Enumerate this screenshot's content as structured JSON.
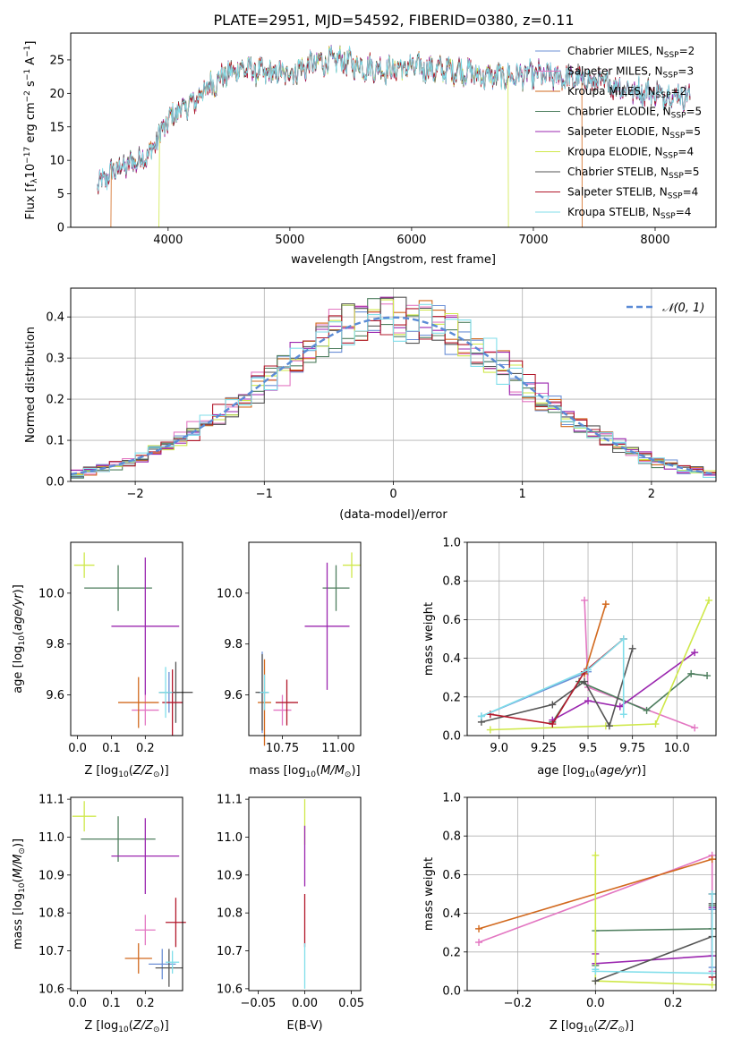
{
  "title": "PLATE=2951, MJD=54592, FIBERID=0380, z=0.11",
  "series_styles": [
    {
      "name": "Chabrier MILES, N_SSP=2",
      "color": "#6b8fd6"
    },
    {
      "name": "Salpeter MILES, N_SSP=3",
      "color": "#e377c2"
    },
    {
      "name": "Kroupa MILES, N_SSP=2",
      "color": "#d2691e"
    },
    {
      "name": "Chabrier ELODIE, N_SSP=5",
      "color": "#4f7f5f"
    },
    {
      "name": "Salpeter ELODIE, N_SSP=5",
      "color": "#9b27af"
    },
    {
      "name": "Kroupa ELODIE, N_SSP=4",
      "color": "#cfe84a"
    },
    {
      "name": "Chabrier STELIB, N_SSP=5",
      "color": "#555555"
    },
    {
      "name": "Salpeter STELIB, N_SSP=4",
      "color": "#b2182b"
    },
    {
      "name": "Kroupa STELIB, N_SSP=4",
      "color": "#80deea"
    }
  ],
  "legend_display": [
    {
      "prefix": "Chabrier MILES, N",
      "sub": "SSP",
      "suffix": "=2"
    },
    {
      "prefix": "Salpeter MILES, N",
      "sub": "SSP",
      "suffix": "=3"
    },
    {
      "prefix": "Kroupa MILES, N",
      "sub": "SSP",
      "suffix": "=2"
    },
    {
      "prefix": "Chabrier ELODIE, N",
      "sub": "SSP",
      "suffix": "=5"
    },
    {
      "prefix": "Salpeter ELODIE, N",
      "sub": "SSP",
      "suffix": "=5"
    },
    {
      "prefix": "Kroupa ELODIE, N",
      "sub": "SSP",
      "suffix": "=4"
    },
    {
      "prefix": "Chabrier STELIB, N",
      "sub": "SSP",
      "suffix": "=5"
    },
    {
      "prefix": "Salpeter STELIB, N",
      "sub": "SSP",
      "suffix": "=4"
    },
    {
      "prefix": "Kroupa STELIB, N",
      "sub": "SSP",
      "suffix": "=4"
    }
  ],
  "chart_data": [
    {
      "id": "spectrum",
      "type": "line",
      "xlabel": "wavelength [Angstrom, rest frame]",
      "ylabel": "Flux [f_λ 10^-17 erg cm^-2 s^-1 A^-1]",
      "ylabel_parts": {
        "a": "Flux [f",
        "sub": "λ",
        "b": "10",
        "sup1": "−17",
        "c": " erg cm",
        "sup2": "−2",
        "d": " s",
        "sup3": "−1",
        "e": " A",
        "sup4": "−1",
        "f": "]"
      },
      "xlim": [
        3200,
        8500
      ],
      "ylim": [
        0,
        29
      ],
      "xticks": [
        4000,
        5000,
        6000,
        7000,
        8000
      ],
      "yticks": [
        0,
        5,
        10,
        15,
        20,
        25
      ],
      "x_range": [
        3420,
        8290
      ],
      "envelope": [
        [
          3420,
          6.0
        ],
        [
          3550,
          8.5
        ],
        [
          3700,
          9.5
        ],
        [
          3850,
          11.0
        ],
        [
          3950,
          14.5
        ],
        [
          4050,
          17.0
        ],
        [
          4200,
          18.5
        ],
        [
          4300,
          20.5
        ],
        [
          4450,
          22.5
        ],
        [
          4600,
          23.8
        ],
        [
          4800,
          23.0
        ],
        [
          5000,
          23.0
        ],
        [
          5200,
          24.5
        ],
        [
          5400,
          25.0
        ],
        [
          5600,
          24.0
        ],
        [
          5800,
          23.5
        ],
        [
          6000,
          24.0
        ],
        [
          6200,
          23.5
        ],
        [
          6400,
          23.5
        ],
        [
          6600,
          22.5
        ],
        [
          6800,
          22.5
        ],
        [
          7000,
          22.8
        ],
        [
          7200,
          22.5
        ],
        [
          7400,
          22.0
        ],
        [
          7600,
          21.5
        ],
        [
          7800,
          20.5
        ],
        [
          8000,
          20.0
        ],
        [
          8290,
          19.5
        ]
      ],
      "dropouts": [
        {
          "series": "Kroupa MILES, N_SSP=2",
          "x": 3530,
          "side": "left"
        },
        {
          "series": "Kroupa ELODIE, N_SSP=4",
          "x": 3925,
          "side": "left"
        },
        {
          "series": "Kroupa ELODIE, N_SSP=4",
          "x": 6795,
          "side": "right"
        },
        {
          "series": "Kroupa MILES, N_SSP=2",
          "x": 7400,
          "side": "right"
        }
      ],
      "legend_position": "upper right"
    },
    {
      "id": "residuals",
      "type": "histogram",
      "xlabel": "(data-model)/error",
      "ylabel": "Normed distribution",
      "xlim": [
        -2.5,
        2.5
      ],
      "ylim": [
        0,
        0.47
      ],
      "xticks": [
        -2,
        -1,
        0,
        1,
        2
      ],
      "yticks": [
        0.0,
        0.1,
        0.2,
        0.3,
        0.4
      ],
      "bin_width": 0.1,
      "reference_curve": {
        "label": "N(0,1)",
        "color": "#5b8bd6"
      },
      "grid": true,
      "legend_position": "upper right"
    },
    {
      "id": "age_vs_Z",
      "type": "errorbar",
      "xlabel": "Z [log10(Z/Z⊙)]",
      "ylabel": "age [log10(age/yr)]",
      "xlim": [
        -0.02,
        0.31
      ],
      "ylim": [
        9.44,
        10.2
      ],
      "xticks": [
        0.0,
        0.1,
        0.2
      ],
      "yticks": [
        9.6,
        9.8,
        10.0
      ],
      "points": [
        {
          "series": "Chabrier MILES, N_SSP=2",
          "x": 0.27,
          "y": 9.61,
          "xerr": 0.03,
          "yerr": 0.08
        },
        {
          "series": "Salpeter MILES, N_SSP=3",
          "x": 0.2,
          "y": 9.54,
          "xerr": 0.04,
          "yerr": 0.06
        },
        {
          "series": "Kroupa MILES, N_SSP=2",
          "x": 0.18,
          "y": 9.57,
          "xerr": 0.06,
          "yerr": 0.1
        },
        {
          "series": "Chabrier ELODIE, N_SSP=5",
          "x": 0.12,
          "y": 10.02,
          "xerr": 0.1,
          "yerr": 0.09
        },
        {
          "series": "Salpeter ELODIE, N_SSP=5",
          "x": 0.2,
          "y": 9.87,
          "xerr": 0.1,
          "yerr": 0.27
        },
        {
          "series": "Kroupa ELODIE, N_SSP=4",
          "x": 0.02,
          "y": 10.11,
          "xerr": 0.03,
          "yerr": 0.05
        },
        {
          "series": "Chabrier STELIB, N_SSP=5",
          "x": 0.29,
          "y": 9.61,
          "xerr": 0.05,
          "yerr": 0.12
        },
        {
          "series": "Salpeter STELIB, N_SSP=4",
          "x": 0.28,
          "y": 9.57,
          "xerr": 0.03,
          "yerr": 0.13
        },
        {
          "series": "Kroupa STELIB, N_SSP=4",
          "x": 0.26,
          "y": 9.61,
          "xerr": 0.02,
          "yerr": 0.1
        }
      ]
    },
    {
      "id": "age_vs_mass",
      "type": "errorbar",
      "xlabel": "mass [log10(M/M⊙)]",
      "ylabel": "",
      "xlim": [
        10.6,
        11.1
      ],
      "ylim": [
        9.44,
        10.2
      ],
      "xticks": [
        10.75,
        11.0
      ],
      "yticks": [
        9.6,
        9.8,
        10.0
      ],
      "points": [
        {
          "series": "Chabrier MILES, N_SSP=2",
          "x": 10.66,
          "y": 9.61,
          "xerr": 0.02,
          "yerr": 0.16
        },
        {
          "series": "Salpeter MILES, N_SSP=3",
          "x": 10.75,
          "y": 9.54,
          "xerr": 0.04,
          "yerr": 0.06
        },
        {
          "series": "Kroupa MILES, N_SSP=2",
          "x": 10.67,
          "y": 9.57,
          "xerr": 0.03,
          "yerr": 0.17
        },
        {
          "series": "Chabrier ELODIE, N_SSP=5",
          "x": 10.99,
          "y": 10.02,
          "xerr": 0.06,
          "yerr": 0.09
        },
        {
          "series": "Salpeter ELODIE, N_SSP=5",
          "x": 10.95,
          "y": 9.87,
          "xerr": 0.1,
          "yerr": 0.25
        },
        {
          "series": "Kroupa ELODIE, N_SSP=4",
          "x": 11.06,
          "y": 10.11,
          "xerr": 0.04,
          "yerr": 0.05
        },
        {
          "series": "Chabrier STELIB, N_SSP=5",
          "x": 10.66,
          "y": 9.61,
          "xerr": 0.03,
          "yerr": 0.15
        },
        {
          "series": "Salpeter STELIB, N_SSP=4",
          "x": 10.77,
          "y": 9.57,
          "xerr": 0.05,
          "yerr": 0.09
        },
        {
          "series": "Kroupa STELIB, N_SSP=4",
          "x": 10.67,
          "y": 9.61,
          "xerr": 0.02,
          "yerr": 0.07
        }
      ]
    },
    {
      "id": "weight_vs_age",
      "type": "line",
      "xlabel": "age [log10(age/yr)]",
      "ylabel": "mass weight",
      "xlim": [
        8.82,
        10.22
      ],
      "ylim": [
        0,
        1
      ],
      "xticks": [
        9.0,
        9.25,
        9.5,
        9.75,
        10.0
      ],
      "yticks": [
        0.0,
        0.2,
        0.4,
        0.6,
        0.8,
        1.0
      ],
      "grid": true,
      "series": [
        {
          "name": "Chabrier MILES, N_SSP=2",
          "x": [
            8.9,
            9.5
          ],
          "y": [
            0.1,
            0.33
          ]
        },
        {
          "name": "Salpeter MILES, N_SSP=3",
          "x": [
            9.48,
            9.5,
            10.1
          ],
          "y": [
            0.7,
            0.25,
            0.04
          ]
        },
        {
          "name": "Kroupa MILES, N_SSP=2",
          "x": [
            9.48,
            9.6
          ],
          "y": [
            0.32,
            0.68
          ]
        },
        {
          "name": "Chabrier ELODIE, N_SSP=5",
          "x": [
            9.3,
            9.45,
            9.83,
            10.08,
            10.17
          ],
          "y": [
            0.07,
            0.28,
            0.13,
            0.32,
            0.31
          ]
        },
        {
          "name": "Salpeter ELODIE, N_SSP=5",
          "x": [
            9.3,
            9.5,
            9.68,
            10.1
          ],
          "y": [
            0.08,
            0.18,
            0.15,
            0.43
          ]
        },
        {
          "name": "Kroupa ELODIE, N_SSP=4",
          "x": [
            8.95,
            9.6,
            9.88,
            10.18
          ],
          "y": [
            0.03,
            0.05,
            0.06,
            0.7
          ]
        },
        {
          "name": "Chabrier STELIB, N_SSP=5",
          "x": [
            8.9,
            9.3,
            9.48,
            9.62,
            9.75
          ],
          "y": [
            0.07,
            0.16,
            0.28,
            0.05,
            0.45
          ]
        },
        {
          "name": "Salpeter STELIB, N_SSP=4",
          "x": [
            8.95,
            9.3,
            9.48,
            9.7
          ],
          "y": [
            0.11,
            0.06,
            0.33,
            0.5
          ]
        },
        {
          "name": "Kroupa STELIB, N_SSP=4",
          "x": [
            8.9,
            9.5,
            9.7,
            9.7
          ],
          "y": [
            0.1,
            0.34,
            0.5,
            0.11
          ]
        }
      ]
    },
    {
      "id": "mass_vs_Z",
      "type": "errorbar",
      "xlabel": "Z [log10(Z/Z⊙)]",
      "ylabel": "mass [log10(M/M⊙)]",
      "xlim": [
        -0.02,
        0.31
      ],
      "ylim": [
        10.595,
        11.105
      ],
      "xticks": [
        0.0,
        0.1,
        0.2
      ],
      "yticks": [
        10.6,
        10.7,
        10.8,
        10.9,
        11.0,
        11.1
      ],
      "points": [
        {
          "series": "Chabrier MILES, N_SSP=2",
          "x": 0.25,
          "y": 10.665,
          "xerr": 0.04,
          "yerr": 0.04
        },
        {
          "series": "Salpeter MILES, N_SSP=3",
          "x": 0.2,
          "y": 10.755,
          "xerr": 0.03,
          "yerr": 0.04
        },
        {
          "series": "Kroupa MILES, N_SSP=2",
          "x": 0.18,
          "y": 10.68,
          "xerr": 0.04,
          "yerr": 0.04
        },
        {
          "series": "Chabrier ELODIE, N_SSP=5",
          "x": 0.12,
          "y": 10.995,
          "xerr": 0.11,
          "yerr": 0.06
        },
        {
          "series": "Salpeter ELODIE, N_SSP=5",
          "x": 0.2,
          "y": 10.95,
          "xerr": 0.1,
          "yerr": 0.1
        },
        {
          "series": "Kroupa ELODIE, N_SSP=4",
          "x": 0.02,
          "y": 11.055,
          "xerr": 0.035,
          "yerr": 0.04
        },
        {
          "series": "Chabrier STELIB, N_SSP=5",
          "x": 0.27,
          "y": 10.655,
          "xerr": 0.04,
          "yerr": 0.05
        },
        {
          "series": "Salpeter STELIB, N_SSP=4",
          "x": 0.29,
          "y": 10.775,
          "xerr": 0.03,
          "yerr": 0.065
        },
        {
          "series": "Kroupa STELIB, N_SSP=4",
          "x": 0.28,
          "y": 10.67,
          "xerr": 0.02,
          "yerr": 0.03
        }
      ]
    },
    {
      "id": "mass_vs_ebv",
      "type": "errorbar",
      "xlabel": "E(B-V)",
      "ylabel": "",
      "xlim": [
        -0.06,
        0.06
      ],
      "ylim": [
        10.595,
        11.105
      ],
      "xticks": [
        -0.05,
        0.0,
        0.05
      ],
      "yticks": [
        10.6,
        10.7,
        10.8,
        10.9,
        11.0,
        11.1
      ],
      "points": [
        {
          "series": "Kroupa ELODIE, N_SSP=4",
          "x": 0.0,
          "y": 11.04,
          "xerr": 0.0,
          "yerr": 0.06
        },
        {
          "series": "Salpeter ELODIE, N_SSP=5",
          "x": 0.0,
          "y": 10.95,
          "xerr": 0.0,
          "yerr": 0.08
        },
        {
          "series": "Salpeter STELIB, N_SSP=4",
          "x": 0.0,
          "y": 10.78,
          "xerr": 0.0,
          "yerr": 0.07
        },
        {
          "series": "Kroupa STELIB, N_SSP=4",
          "x": 0.0,
          "y": 10.66,
          "xerr": 0.0,
          "yerr": 0.06
        }
      ]
    },
    {
      "id": "weight_vs_Z",
      "type": "line",
      "xlabel": "Z [log10(Z/Z⊙)]",
      "ylabel": "mass weight",
      "xlim": [
        -0.33,
        0.31
      ],
      "ylim": [
        0,
        1
      ],
      "xticks": [
        -0.2,
        0.0,
        0.2
      ],
      "yticks": [
        0.0,
        0.2,
        0.4,
        0.6,
        0.8,
        1.0
      ],
      "grid": true,
      "series": [
        {
          "name": "Chabrier MILES, N_SSP=2",
          "x": [
            0.3,
            0.3
          ],
          "y": [
            0.12,
            0.42
          ]
        },
        {
          "name": "Salpeter MILES, N_SSP=3",
          "x": [
            -0.3,
            0.3,
            0.3
          ],
          "y": [
            0.25,
            0.7,
            0.1
          ]
        },
        {
          "name": "Kroupa MILES, N_SSP=2",
          "x": [
            -0.3,
            0.3
          ],
          "y": [
            0.32,
            0.68
          ]
        },
        {
          "name": "Chabrier ELODIE, N_SSP=5",
          "x": [
            0.0,
            0.0,
            0.3,
            0.3
          ],
          "y": [
            0.13,
            0.31,
            0.32,
            0.44
          ]
        },
        {
          "name": "Salpeter ELODIE, N_SSP=5",
          "x": [
            0.0,
            0.0,
            0.3,
            0.3
          ],
          "y": [
            0.19,
            0.14,
            0.18,
            0.43
          ]
        },
        {
          "name": "Kroupa ELODIE, N_SSP=4",
          "x": [
            0.0,
            0.0,
            0.3
          ],
          "y": [
            0.7,
            0.05,
            0.03
          ]
        },
        {
          "name": "Chabrier STELIB, N_SSP=5",
          "x": [
            0.0,
            0.3,
            0.3
          ],
          "y": [
            0.05,
            0.28,
            0.45
          ]
        },
        {
          "name": "Salpeter STELIB, N_SSP=4",
          "x": [
            0.3,
            0.3
          ],
          "y": [
            0.07,
            0.5
          ]
        },
        {
          "name": "Kroupa STELIB, N_SSP=4",
          "x": [
            0.0,
            0.0,
            0.3,
            0.3
          ],
          "y": [
            0.11,
            0.1,
            0.09,
            0.5
          ]
        }
      ]
    }
  ]
}
